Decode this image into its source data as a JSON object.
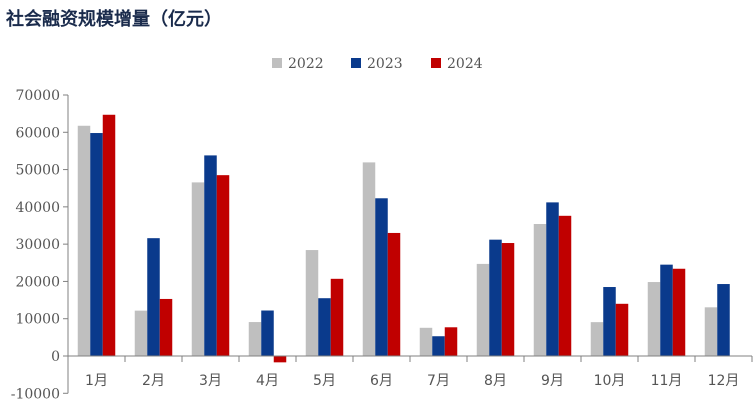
{
  "chart_data": {
    "type": "bar",
    "title": "社会融资规模增量（亿元）",
    "xlabel": "",
    "ylabel": "",
    "categories": [
      "1月",
      "2月",
      "3月",
      "4月",
      "5月",
      "6月",
      "7月",
      "8月",
      "9月",
      "10月",
      "11月",
      "12月"
    ],
    "series": [
      {
        "name": "2022",
        "color": "#bfbfbf",
        "values": [
          61750,
          12166,
          46565,
          9102,
          28415,
          51926,
          7561,
          24700,
          35400,
          9079,
          19837,
          13058
        ]
      },
      {
        "name": "2023",
        "color": "#0a3a8c",
        "values": [
          59800,
          31600,
          53800,
          12200,
          15500,
          42300,
          5300,
          31200,
          41200,
          18500,
          24500,
          19300
        ]
      },
      {
        "name": "2024",
        "color": "#c00000",
        "values": [
          64700,
          15300,
          48500,
          -1700,
          20700,
          33000,
          7700,
          30300,
          37600,
          14000,
          23400,
          null
        ]
      }
    ],
    "ylim": [
      -10000,
      70000
    ],
    "yticks": [
      -10000,
      0,
      10000,
      20000,
      30000,
      40000,
      50000,
      60000,
      70000
    ],
    "legend": "top-center",
    "grid": false
  }
}
